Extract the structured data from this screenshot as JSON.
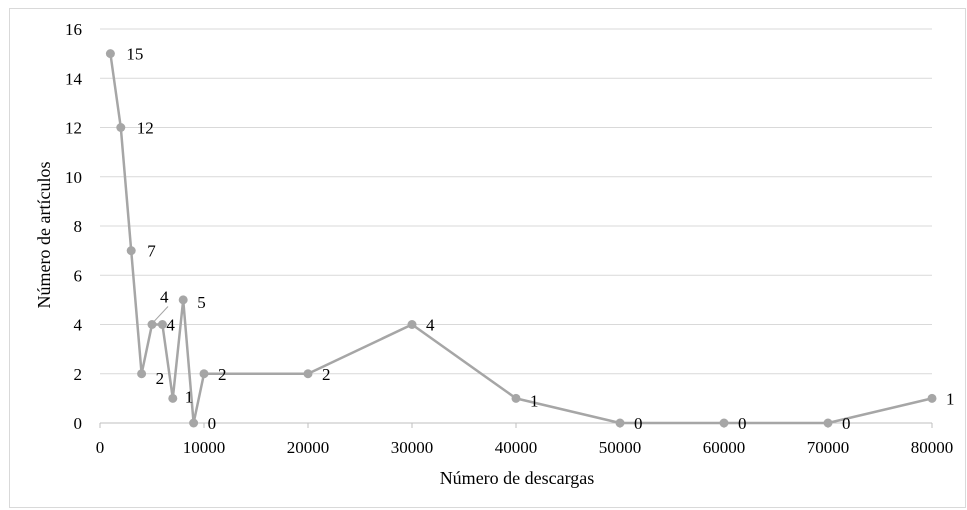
{
  "chart_data": {
    "type": "line",
    "title": "",
    "xlabel": "Número de descargas",
    "ylabel": "Número de artículos",
    "xlim": [
      0,
      80000
    ],
    "ylim": [
      0,
      16
    ],
    "x_ticks": [
      "0",
      "10000",
      "20000",
      "30000",
      "40000",
      "50000",
      "60000",
      "70000",
      "80000"
    ],
    "y_ticks": [
      "0",
      "2",
      "4",
      "6",
      "8",
      "10",
      "12",
      "14",
      "16"
    ],
    "grid": true,
    "legend": "none",
    "series_color": "#a6a6a6",
    "series": [
      {
        "x": [
          1000,
          2000,
          3000,
          4000,
          5000,
          6000,
          7000,
          8000,
          9000,
          10000,
          20000,
          30000,
          40000,
          50000,
          60000,
          70000,
          80000
        ],
        "values": [
          15,
          12,
          7,
          2,
          4,
          4,
          1,
          5,
          0,
          2,
          2,
          4,
          1,
          0,
          0,
          0,
          1
        ],
        "labels": [
          "15",
          "12",
          "7",
          "2",
          "4",
          "4",
          "1",
          "5",
          "0",
          "2",
          "2",
          "4",
          "1",
          "0",
          "0",
          "0",
          "1"
        ]
      }
    ]
  }
}
